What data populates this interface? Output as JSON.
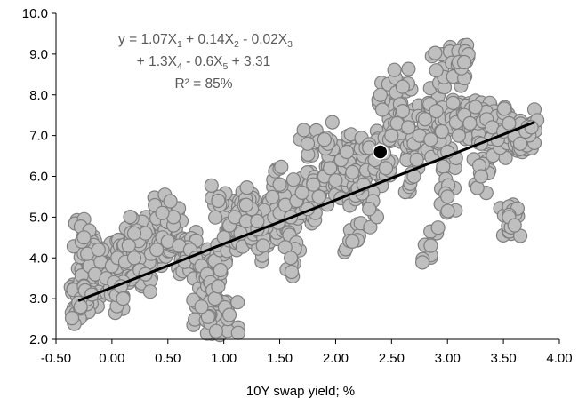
{
  "chart_data": {
    "type": "scatter",
    "title": "",
    "xlabel": "10Y swap yield; %",
    "ylabel": "",
    "xlim": [
      -0.5,
      4.0
    ],
    "ylim": [
      2.0,
      10.0
    ],
    "x_ticks": [
      "-0.50",
      "0.00",
      "0.50",
      "1.00",
      "1.50",
      "2.00",
      "2.50",
      "3.00",
      "3.50",
      "4.00"
    ],
    "y_ticks": [
      "2.0",
      "3.0",
      "4.0",
      "5.0",
      "6.0",
      "7.0",
      "8.0",
      "9.0",
      "10.0"
    ],
    "grid": false,
    "legend": "none",
    "colors": {
      "points": "#bfbfbf",
      "point_edge": "#7f7f7f",
      "trend": "#000000",
      "highlight": "#000000",
      "equation": "#595959"
    },
    "series": [
      {
        "x": [
          -0.28,
          -0.25,
          -0.3,
          -0.2,
          -0.22,
          -0.15,
          -0.1,
          -0.05,
          0.0,
          0.05,
          -0.27,
          -0.24,
          -0.18,
          -0.12,
          0.02,
          0.08,
          0.12,
          0.15,
          0.2,
          0.25,
          0.3,
          0.35,
          0.4,
          0.45,
          0.5,
          0.55,
          0.6,
          0.65,
          0.7,
          0.75,
          0.8,
          0.85,
          0.88,
          0.9,
          0.92,
          0.95,
          0.97,
          1.0,
          1.05,
          1.1,
          1.15,
          1.2,
          1.25,
          1.3,
          1.35,
          1.4,
          1.45,
          1.5,
          1.55,
          1.6,
          1.65,
          1.7,
          1.75,
          1.8,
          1.85,
          1.9,
          1.95,
          2.0,
          2.05,
          2.1,
          2.15,
          2.2,
          2.25,
          2.3,
          2.35,
          2.45,
          2.5,
          2.55,
          2.6,
          2.65,
          2.7,
          2.75,
          2.8,
          2.85,
          2.9,
          2.95,
          3.0,
          3.05,
          3.1,
          3.15,
          3.2,
          3.25,
          3.3,
          3.35,
          3.4,
          3.45,
          3.5,
          3.55,
          3.6,
          3.65,
          3.7,
          3.75,
          -0.28,
          0.1,
          0.3,
          0.55,
          0.8,
          0.93,
          1.05,
          1.3,
          1.6,
          1.75,
          2.15,
          2.4,
          2.6,
          2.85,
          2.9,
          3.1,
          3.15,
          3.55,
          3.6,
          -0.25,
          0.2,
          0.45,
          0.95,
          1.2,
          1.5,
          1.9,
          2.3,
          2.7,
          3.0,
          3.3
        ],
        "y": [
          3.0,
          3.3,
          2.9,
          3.8,
          4.1,
          3.6,
          3.9,
          3.5,
          3.8,
          4.0,
          4.4,
          3.2,
          3.1,
          4.2,
          3.4,
          3.3,
          3.9,
          4.3,
          4.0,
          3.7,
          4.6,
          4.1,
          4.2,
          4.5,
          4.4,
          4.8,
          4.3,
          3.9,
          4.2,
          4.0,
          3.8,
          3.6,
          3.4,
          3.2,
          3.0,
          3.3,
          3.7,
          4.5,
          4.8,
          5.0,
          4.6,
          4.9,
          5.2,
          4.7,
          4.3,
          4.9,
          5.0,
          5.1,
          5.3,
          5.0,
          5.4,
          5.6,
          5.2,
          5.8,
          5.5,
          6.0,
          6.2,
          5.9,
          6.4,
          6.6,
          6.1,
          5.7,
          5.8,
          6.7,
          6.4,
          6.2,
          7.0,
          7.3,
          7.6,
          7.2,
          6.8,
          7.0,
          7.4,
          6.9,
          7.6,
          7.1,
          6.6,
          7.8,
          7.0,
          7.5,
          7.3,
          7.7,
          6.8,
          7.4,
          7.2,
          6.9,
          7.1,
          7.3,
          7.0,
          6.8,
          7.1,
          7.2,
          2.8,
          3.0,
          3.6,
          5.0,
          2.8,
          2.2,
          2.6,
          4.9,
          4.0,
          6.8,
          4.4,
          8.0,
          8.2,
          4.3,
          8.6,
          8.8,
          8.8,
          5.0,
          4.8,
          4.5,
          4.6,
          5.1,
          5.4,
          5.3,
          5.8,
          6.9,
          5.2,
          6.0,
          5.5,
          6.0
        ]
      }
    ],
    "highlight_point": {
      "x": 2.4,
      "y": 6.6
    },
    "trendline": {
      "x": [
        -0.3,
        3.78
      ],
      "y": [
        2.95,
        7.33
      ]
    },
    "equation": {
      "line1": {
        "a": "y = 1.07X",
        "s1": "1",
        "b": " + 0.14X",
        "s2": "2",
        "c": " - 0.02X",
        "s3": "3"
      },
      "line2": {
        "a": "+ 1.3X",
        "s1": "4",
        "b": " - 0.6X",
        "s2": "5",
        "c": " + 3.31"
      },
      "line3": "R² = 85%"
    }
  }
}
